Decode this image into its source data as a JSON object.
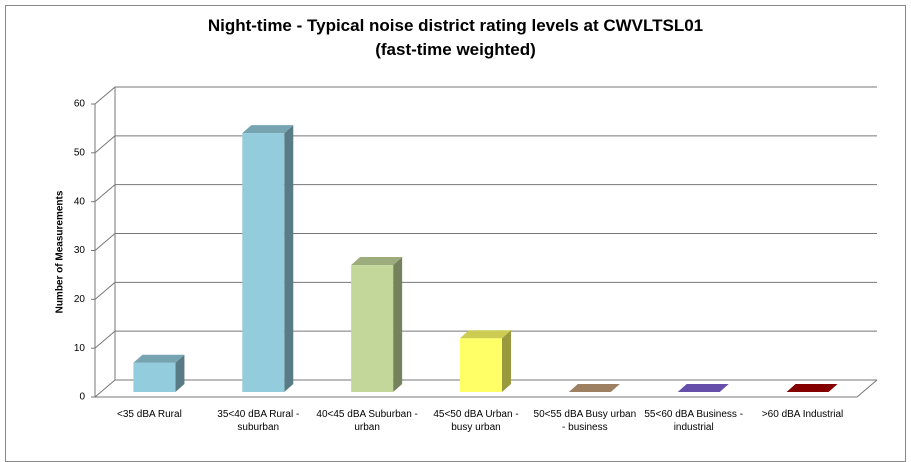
{
  "chart_data": {
    "type": "bar3d",
    "title": "Night-time - Typical noise district rating levels at CWVLTSL01\n(fast-time weighted)",
    "y_label": "Number of Measurements",
    "categories": [
      "<35 dBA Rural",
      "35<40 dBA Rural - suburban",
      "40<45 dBA Suburban - urban",
      "45<50 dBA Urban - busy urban",
      "50<55 dBA Busy urban - business",
      "55<60 dBA Business - industrial",
      ">60 dBA Industrial"
    ],
    "values": [
      6,
      53,
      26,
      11,
      0,
      0,
      0
    ],
    "colors": [
      "#93cddd",
      "#93cddd",
      "#c4d79b",
      "#ffff66",
      "#c4a07a",
      "#7f62d6",
      "#a50000"
    ],
    "ylim": [
      0,
      60
    ],
    "yticks": [
      0,
      10,
      20,
      30,
      40,
      50,
      60
    ],
    "grid": true
  }
}
